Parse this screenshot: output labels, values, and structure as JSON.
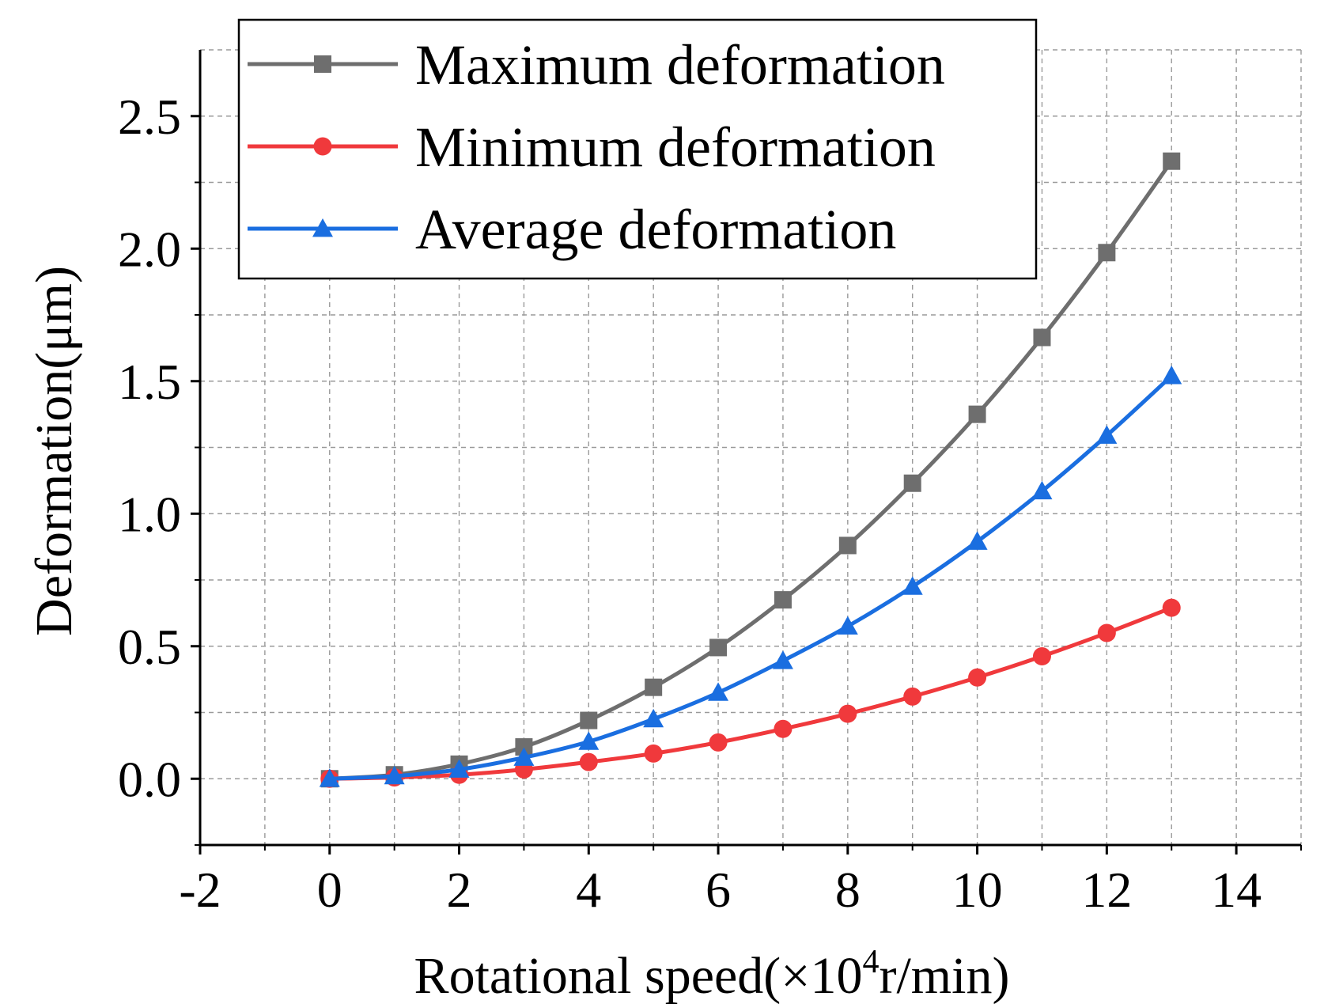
{
  "chart_data": {
    "type": "line",
    "title": "",
    "xlabel_prefix": "Rotational speed(×10",
    "xlabel_exponent": "4",
    "xlabel_suffix": "r/min)",
    "ylabel": "Deformation(μm)",
    "xlim": [
      -2,
      15
    ],
    "ylim": [
      -0.25,
      2.75
    ],
    "x_ticks": [
      -2,
      0,
      2,
      4,
      6,
      8,
      10,
      12,
      14
    ],
    "x_tick_labels": [
      "-2",
      "0",
      "2",
      "4",
      "6",
      "8",
      "10",
      "12",
      "14"
    ],
    "y_ticks": [
      0.0,
      0.5,
      1.0,
      1.5,
      2.0,
      2.5
    ],
    "y_tick_labels": [
      "0.0",
      "0.5",
      "1.0",
      "1.5",
      "2.0",
      "2.5"
    ],
    "grid": true,
    "legend_position": "top-left",
    "x": [
      0,
      1,
      2,
      3,
      4,
      5,
      6,
      7,
      8,
      9,
      10,
      11,
      12,
      13
    ],
    "series": [
      {
        "name": "Maximum deformation",
        "color": "#6e6e6e",
        "marker": "square",
        "values": [
          0.0,
          0.015,
          0.055,
          0.12,
          0.22,
          0.345,
          0.495,
          0.675,
          0.88,
          1.115,
          1.375,
          1.665,
          1.985,
          2.33
        ]
      },
      {
        "name": "Minimum deformation",
        "color": "#f0393c",
        "marker": "circle",
        "values": [
          0.0,
          0.005,
          0.015,
          0.035,
          0.063,
          0.095,
          0.137,
          0.188,
          0.245,
          0.31,
          0.382,
          0.462,
          0.55,
          0.645
        ]
      },
      {
        "name": "Average deformation",
        "color": "#1a6ee0",
        "marker": "triangle",
        "values": [
          0.0,
          0.01,
          0.035,
          0.08,
          0.14,
          0.225,
          0.325,
          0.445,
          0.575,
          0.725,
          0.895,
          1.085,
          1.295,
          1.52
        ]
      }
    ]
  }
}
